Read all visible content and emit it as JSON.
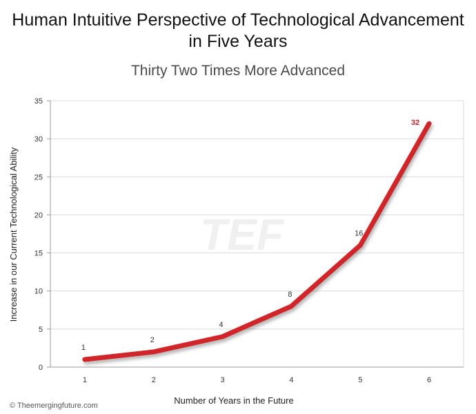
{
  "title_line1": "Human Intuitive Perspective of Technological Advancement",
  "title_line2": "in Five Years",
  "subtitle": "Thirty Two Times More Advanced",
  "copyright": "© Theemergingfuture.com",
  "watermark": "TEF",
  "chart_data": {
    "type": "line",
    "x": [
      1,
      2,
      3,
      4,
      5,
      6
    ],
    "series": [
      {
        "values": [
          1,
          2,
          4,
          8,
          16,
          32
        ],
        "color": "#d0252a"
      }
    ],
    "data_labels": [
      "1",
      "2",
      "4",
      "8",
      "16",
      "32"
    ],
    "highlight_label_color": "#cc1f24",
    "xlabel": "Number of Years in the Future",
    "ylabel": "Increase in our Current Technological Ability",
    "xticks": [
      "1",
      "2",
      "3",
      "4",
      "5",
      "6"
    ],
    "yticks": [
      0,
      5,
      10,
      15,
      20,
      25,
      30,
      35
    ],
    "xlim": [
      0.5,
      6.5
    ],
    "ylim": [
      0,
      35
    ],
    "grid": true,
    "legend": "none"
  }
}
